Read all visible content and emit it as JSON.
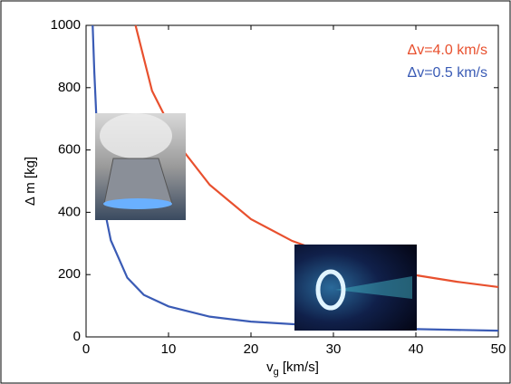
{
  "chart_data": {
    "type": "line",
    "xlabel": "v",
    "xlabel_sub": "g",
    "xlabel_unit": " [km/s]",
    "ylabel": "Δ m [kg]",
    "xlim": [
      0,
      50
    ],
    "ylim": [
      0,
      1000
    ],
    "xticks": [
      0,
      10,
      20,
      30,
      40,
      50
    ],
    "yticks": [
      0,
      200,
      400,
      600,
      800,
      1000
    ],
    "legend": "upper right",
    "series": [
      {
        "name": "Δv=4.0 km/s",
        "color": "#e8502e",
        "x": [
          6,
          8,
          10,
          12,
          15,
          20,
          25,
          30,
          35,
          40,
          45,
          50
        ],
        "values": [
          1000,
          790,
          685,
          590,
          488,
          378,
          308,
          260,
          225,
          198,
          177,
          160
        ]
      },
      {
        "name": "Δv=0.5 km/s",
        "color": "#3a5bb5",
        "x": [
          0.8,
          1,
          1.5,
          2,
          3,
          5,
          7,
          10,
          15,
          20,
          30,
          40,
          50
        ],
        "values": [
          1000,
          850,
          560,
          440,
          310,
          190,
          135,
          98,
          65,
          49,
          33,
          25,
          20
        ]
      }
    ]
  }
}
